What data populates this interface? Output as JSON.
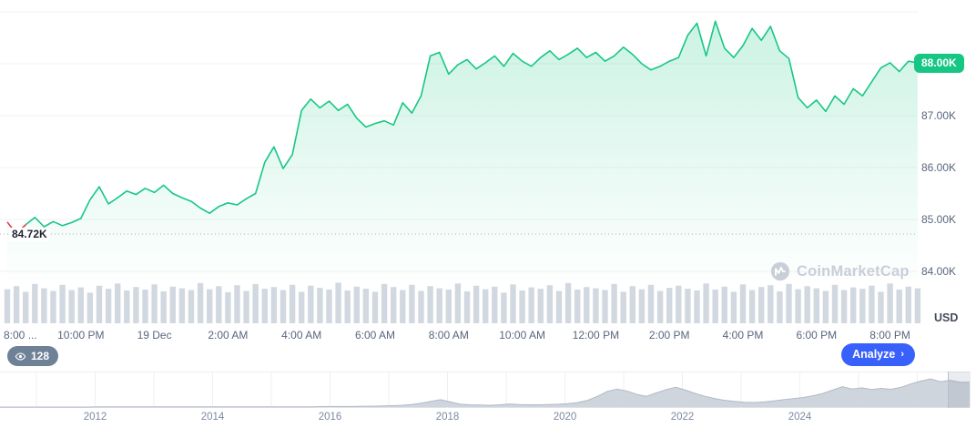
{
  "colors": {
    "up_green": "#16c784",
    "down_red": "#ea3943",
    "analyze_blue": "#3861fb",
    "axis_text": "#58667e",
    "volume_gray": "#d2d8e0",
    "mini_fill": "#cfd5dd"
  },
  "watermark": {
    "text": "CoinMarketCap"
  },
  "footer": {
    "views_count": "128",
    "analyze_label": "Analyze",
    "chevron": "›"
  },
  "chart_data": [
    {
      "type": "line",
      "name": "intraday-price-chart",
      "title": "Price chart (1 day)",
      "currency": "USD",
      "current_price_label": "88.00K",
      "low_label": "84.72K",
      "low_value": 84.72,
      "ylim": [
        84,
        89
      ],
      "gridline_values": [
        89,
        88,
        87,
        86,
        85,
        84
      ],
      "y_ticks": [
        {
          "label": "87.00K",
          "value": 87
        },
        {
          "label": "86.00K",
          "value": 86
        },
        {
          "label": "85.00K",
          "value": 85
        },
        {
          "label": "84.00K",
          "value": 84
        }
      ],
      "x_ticks": [
        {
          "label": "8:00 ...",
          "hour": 0
        },
        {
          "label": "10:00 PM",
          "hour": 2
        },
        {
          "label": "19 Dec",
          "hour": 4
        },
        {
          "label": "2:00 AM",
          "hour": 6
        },
        {
          "label": "4:00 AM",
          "hour": 8
        },
        {
          "label": "6:00 AM",
          "hour": 10
        },
        {
          "label": "8:00 AM",
          "hour": 12
        },
        {
          "label": "10:00 AM",
          "hour": 14
        },
        {
          "label": "12:00 PM",
          "hour": 16
        },
        {
          "label": "2:00 PM",
          "hour": 18
        },
        {
          "label": "4:00 PM",
          "hour": 20
        },
        {
          "label": "6:00 PM",
          "hour": 22
        },
        {
          "label": "8:00 PM",
          "hour": 24
        }
      ],
      "red_segment_end_index": 2,
      "series": [
        {
          "name": "price",
          "unit": "K USD",
          "values": [
            84.95,
            84.72,
            84.9,
            85.04,
            84.86,
            84.96,
            84.88,
            84.94,
            85.02,
            85.38,
            85.63,
            85.3,
            85.42,
            85.55,
            85.48,
            85.6,
            85.52,
            85.66,
            85.5,
            85.42,
            85.35,
            85.22,
            85.12,
            85.25,
            85.32,
            85.28,
            85.4,
            85.5,
            86.1,
            86.4,
            85.98,
            86.25,
            87.1,
            87.32,
            87.15,
            87.28,
            87.1,
            87.22,
            86.95,
            86.78,
            86.85,
            86.9,
            86.82,
            87.25,
            87.05,
            87.38,
            88.15,
            88.22,
            87.8,
            87.98,
            88.08,
            87.9,
            88.02,
            88.15,
            87.95,
            88.2,
            88.05,
            87.95,
            88.12,
            88.25,
            88.08,
            88.18,
            88.3,
            88.12,
            88.22,
            88.05,
            88.15,
            88.32,
            88.18,
            88.0,
            87.88,
            87.95,
            88.05,
            88.12,
            88.55,
            88.78,
            88.15,
            88.82,
            88.3,
            88.12,
            88.35,
            88.68,
            88.45,
            88.72,
            88.25,
            88.1,
            87.35,
            87.15,
            87.3,
            87.08,
            87.38,
            87.22,
            87.52,
            87.38,
            87.65,
            87.92,
            88.02,
            87.85,
            88.05,
            88.02
          ]
        }
      ],
      "volume_relative": [
        78,
        85,
        72,
        90,
        80,
        74,
        88,
        76,
        82,
        70,
        86,
        79,
        91,
        75,
        83,
        77,
        89,
        73,
        84,
        80,
        76,
        92,
        78,
        85,
        71,
        87,
        74,
        90,
        79,
        83,
        76,
        88,
        72,
        86,
        81,
        77,
        93,
        75,
        84,
        79,
        72,
        90,
        83,
        76,
        88,
        74,
        85,
        80,
        77,
        91,
        73,
        86,
        78,
        84,
        70,
        89,
        75,
        82,
        79,
        87,
        74,
        92,
        77,
        83,
        80,
        76,
        90,
        72,
        85,
        78,
        88,
        74,
        81,
        86,
        79,
        75,
        91,
        77,
        84,
        72,
        89,
        76,
        83,
        87,
        73,
        90,
        78,
        85,
        80,
        74,
        88,
        76,
        82,
        79,
        86,
        72,
        91,
        77,
        84,
        80
      ]
    },
    {
      "type": "area",
      "name": "all-time-overview",
      "year_ticks": [
        {
          "label": "2012",
          "year": 2012
        },
        {
          "label": "2014",
          "year": 2014
        },
        {
          "label": "2016",
          "year": 2016
        },
        {
          "label": "2018",
          "year": 2018
        },
        {
          "label": "2020",
          "year": 2020
        },
        {
          "label": "2022",
          "year": 2022
        },
        {
          "label": "2024",
          "year": 2024
        }
      ],
      "values": [
        0,
        0,
        0,
        0,
        0,
        0,
        0,
        0,
        0,
        0,
        1,
        1,
        1,
        1,
        1,
        1,
        1,
        1,
        1,
        1,
        1,
        1,
        1,
        1,
        1,
        1,
        1,
        1,
        1,
        1,
        1,
        1,
        1,
        2,
        2,
        2,
        2,
        3,
        3,
        4,
        5,
        6,
        9,
        14,
        20,
        26,
        18,
        10,
        8,
        7,
        6,
        8,
        11,
        9,
        8,
        8,
        9,
        10,
        12,
        16,
        24,
        38,
        55,
        64,
        57,
        45,
        38,
        50,
        62,
        70,
        60,
        48,
        38,
        30,
        24,
        20,
        17,
        16,
        18,
        22,
        26,
        30,
        34,
        40,
        48,
        60,
        72,
        64,
        68,
        62,
        66,
        63,
        70,
        82,
        92,
        100,
        90,
        95,
        88,
        88
      ]
    }
  ]
}
